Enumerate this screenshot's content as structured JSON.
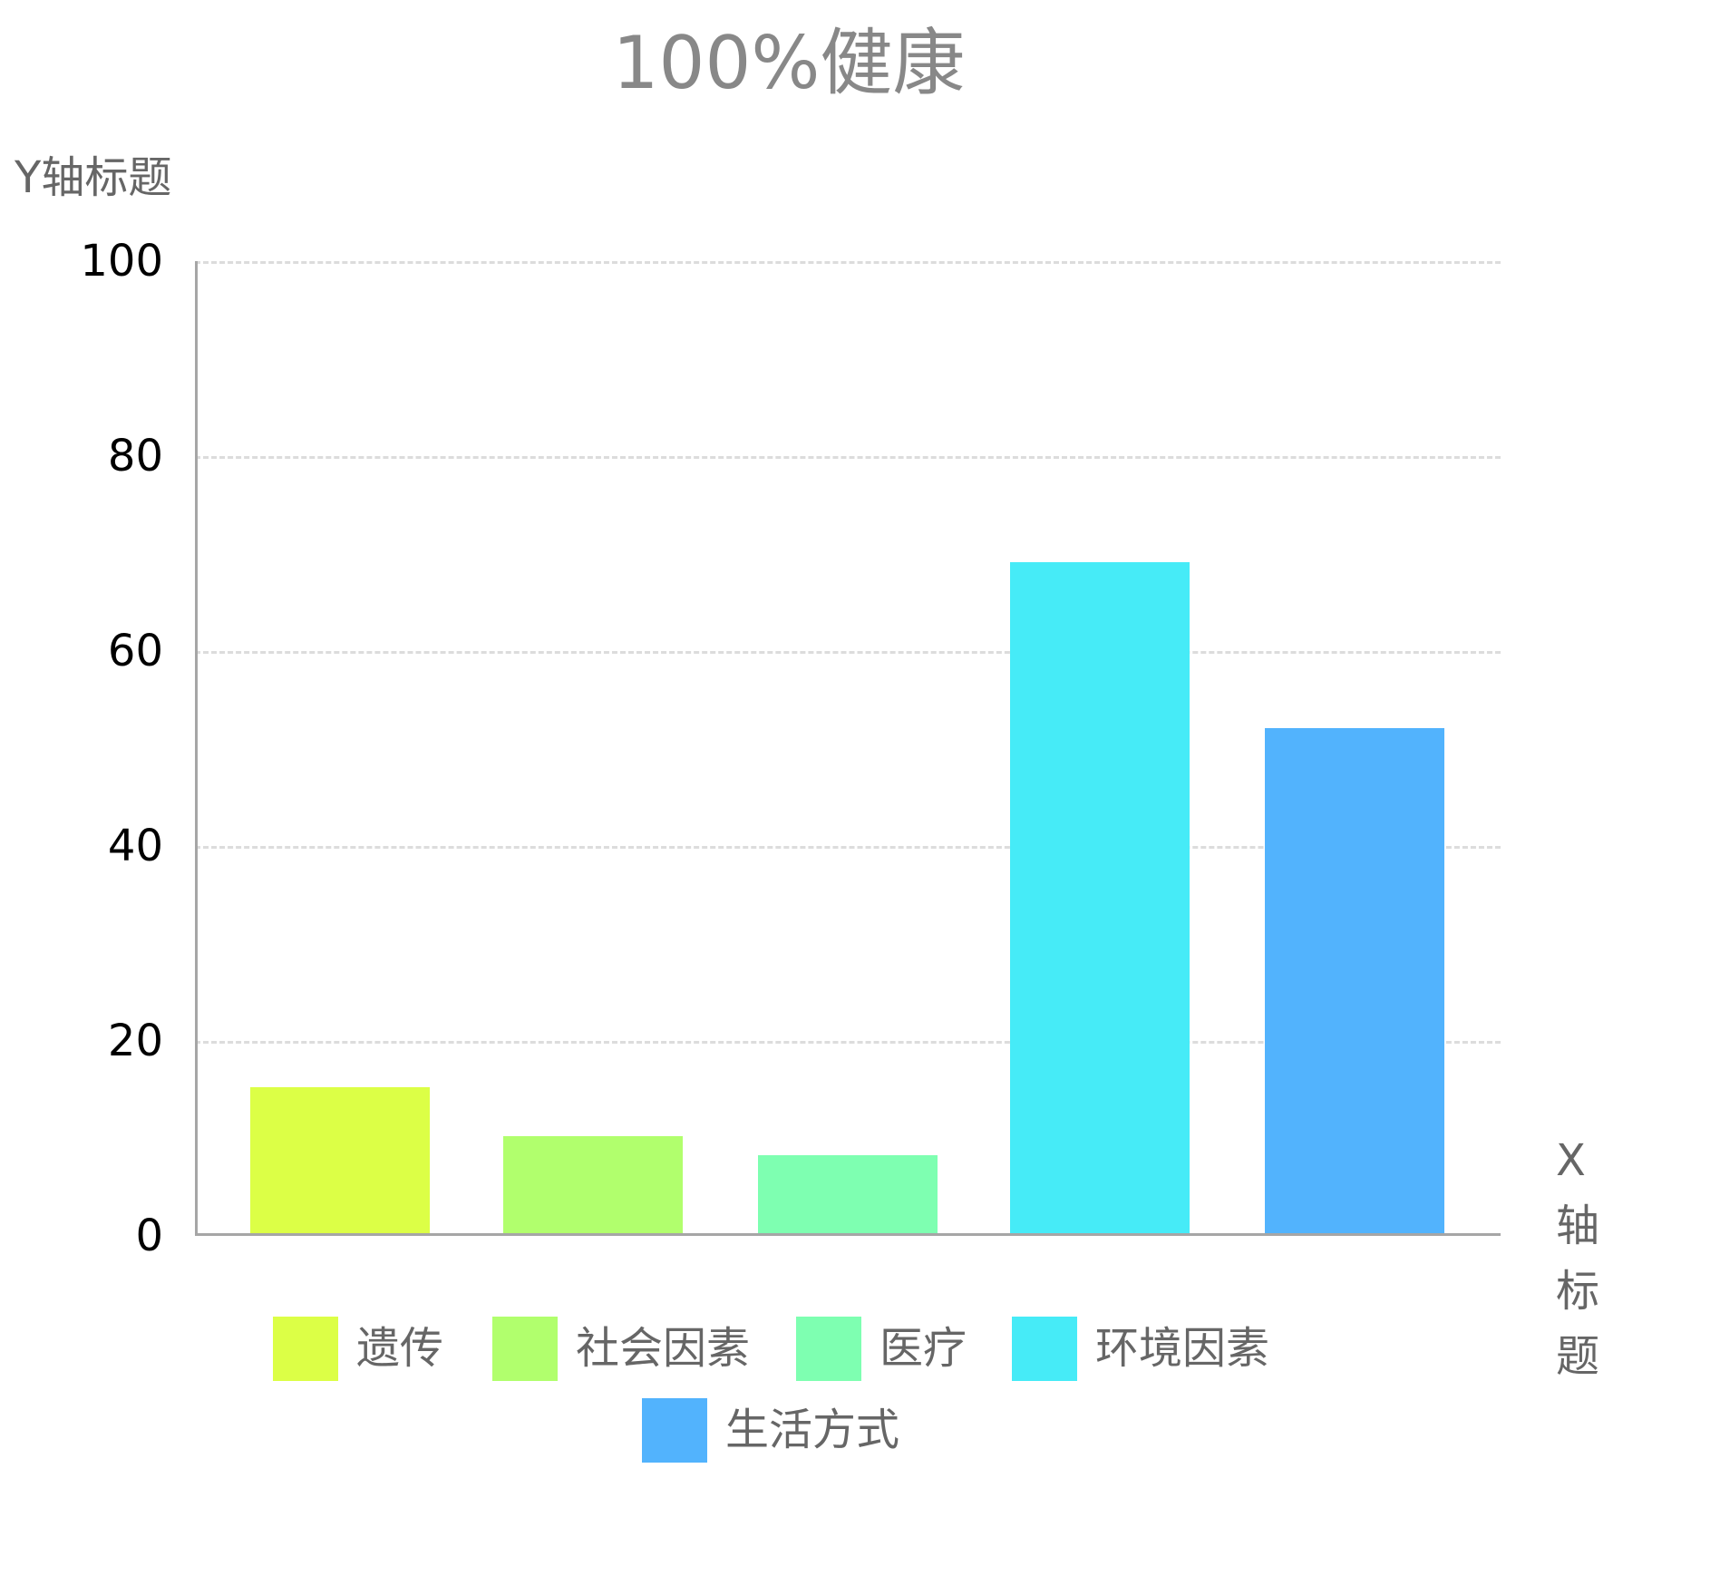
{
  "chart_data": {
    "type": "bar",
    "title": "100%健康",
    "xlabel": "X轴标题",
    "ylabel": "Y轴标题",
    "categories": [
      "遗传",
      "社会因素",
      "医疗",
      "环境因素",
      "生活方式"
    ],
    "values": [
      15,
      10,
      8,
      69,
      52
    ],
    "colors": [
      "#dcff46",
      "#b1ff6d",
      "#7effb1",
      "#46ebf7",
      "#52b3fd"
    ],
    "ylim": [
      0,
      100
    ],
    "yticks": [
      0,
      20,
      40,
      60,
      80,
      100
    ],
    "grid": true,
    "grid_style": "dashed",
    "legend_position": "bottom"
  },
  "chart": {
    "title": "100%健康",
    "y_title": "Y轴标题",
    "x_title_chars": [
      "X",
      "轴",
      "标",
      "题"
    ],
    "yticks": [
      "0",
      "20",
      "40",
      "60",
      "80",
      "100"
    ],
    "legend": [
      {
        "label": "遗传",
        "color": "#dcff46"
      },
      {
        "label": "社会因素",
        "color": "#b1ff6d"
      },
      {
        "label": "医疗",
        "color": "#7effb1"
      },
      {
        "label": "环境因素",
        "color": "#46ebf7"
      },
      {
        "label": "生活方式",
        "color": "#52b3fd"
      }
    ]
  }
}
